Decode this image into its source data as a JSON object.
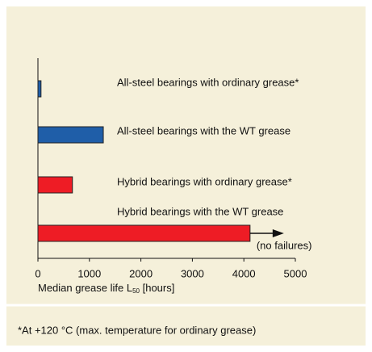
{
  "chart_data": {
    "type": "hbar",
    "categories": [
      "All-steel bearings with ordinary grease*",
      "All-steel bearings with the WT grease",
      "Hybrid bearings with ordinary grease*",
      "Hybrid bearings with the WT grease"
    ],
    "values": [
      60,
      1270,
      670,
      4120
    ],
    "colors": [
      "#1f5ea8",
      "#1f5ea8",
      "#ee1c25",
      "#ee1c25"
    ],
    "xlim": [
      0,
      5000
    ],
    "xticks": [
      0,
      1000,
      2000,
      3000,
      4000,
      5000
    ],
    "xlabel": "Median grease life L",
    "xlabel_sub": "50",
    "xlabel_end": " [hours]",
    "annotation": "(no failures)",
    "footnote": "*At +120 °C (max. temperature for ordinary grease)"
  }
}
